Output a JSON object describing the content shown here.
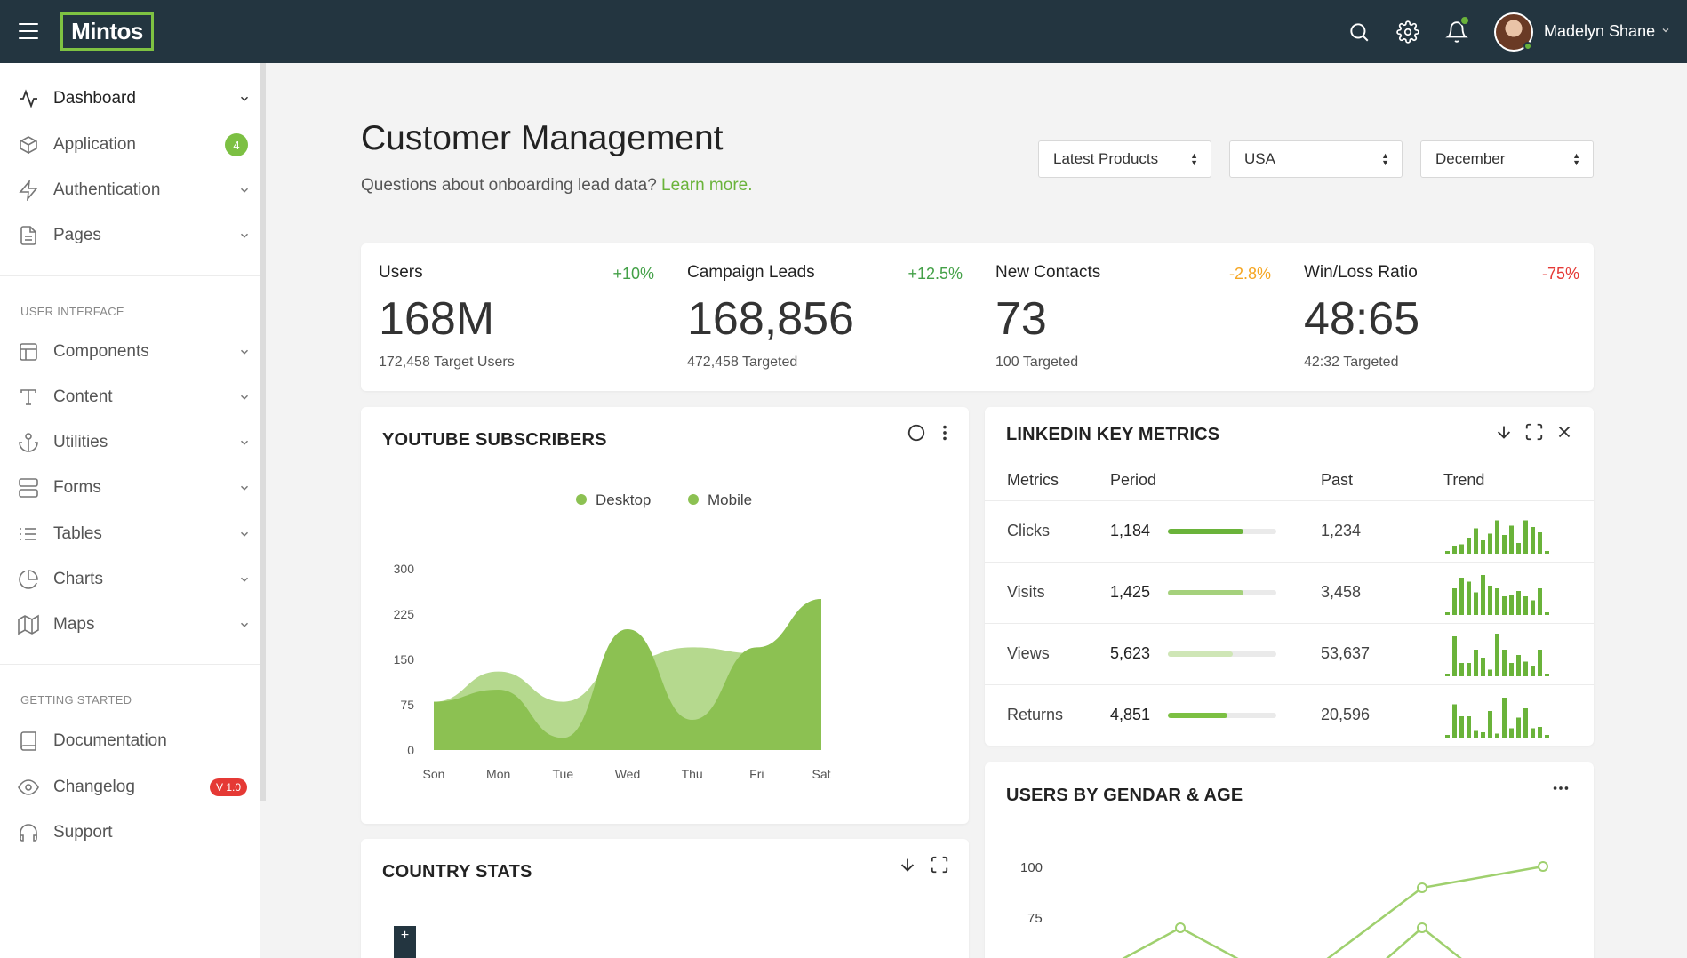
{
  "header": {
    "logo": "Mintos",
    "user_name": "Madelyn Shane"
  },
  "sidebar": {
    "items": [
      {
        "label": "Dashboard",
        "icon": "activity-icon"
      },
      {
        "label": "Application",
        "icon": "box-icon",
        "badge": "4"
      },
      {
        "label": "Authentication",
        "icon": "zap-icon"
      },
      {
        "label": "Pages",
        "icon": "file-icon"
      },
      {
        "label": "Components",
        "icon": "layout-icon"
      },
      {
        "label": "Content",
        "icon": "type-icon"
      },
      {
        "label": "Utilities",
        "icon": "anchor-icon"
      },
      {
        "label": "Forms",
        "icon": "server-icon"
      },
      {
        "label": "Tables",
        "icon": "list-icon"
      },
      {
        "label": "Charts",
        "icon": "pie-chart-icon"
      },
      {
        "label": "Maps",
        "icon": "map-icon"
      },
      {
        "label": "Documentation",
        "icon": "book-icon"
      },
      {
        "label": "Changelog",
        "icon": "eye-icon",
        "badge": "V 1.0"
      },
      {
        "label": "Support",
        "icon": "headphones-icon"
      }
    ],
    "section_ui": "USER INTERFACE",
    "section_start": "GETTING STARTED"
  },
  "page": {
    "title": "Customer Management",
    "subtitle": "Questions about onboarding lead data?",
    "learn_more": "Learn more."
  },
  "filters": [
    {
      "value": "Latest Products"
    },
    {
      "value": "USA"
    },
    {
      "value": "December"
    }
  ],
  "stats": [
    {
      "label": "Users",
      "change": "+10%",
      "value": "168M",
      "target": "172,458 Target Users",
      "color": "#43a047"
    },
    {
      "label": "Campaign Leads",
      "change": "+12.5%",
      "value": "168,856",
      "target": "472,458 Targeted",
      "color": "#43a047"
    },
    {
      "label": "New Contacts",
      "change": "-2.8%",
      "value": "73",
      "target": "100 Targeted",
      "color": "#f5a623"
    },
    {
      "label": "Win/Loss Ratio",
      "change": "-75%",
      "value": "48:65",
      "target": "42:32 Targeted",
      "color": "#e53935"
    }
  ],
  "youtube": {
    "title": "YOUTUBE SUBSCRIBERS",
    "legend": [
      "Desktop",
      "Mobile"
    ],
    "chart_data": {
      "type": "area",
      "categories": [
        "Son",
        "Mon",
        "Tue",
        "Wed",
        "Thu",
        "Fri",
        "Sat"
      ],
      "yticks": [
        0,
        75,
        150,
        225,
        300
      ],
      "ylim": [
        0,
        300
      ],
      "series": [
        {
          "name": "Desktop",
          "values": [
            80,
            100,
            20,
            200,
            50,
            170,
            250
          ],
          "color": "#8cc152"
        },
        {
          "name": "Mobile",
          "values": [
            80,
            130,
            80,
            150,
            170,
            160,
            250
          ],
          "color": "#b5d98e"
        }
      ]
    }
  },
  "linkedin": {
    "title": "LINKEDIN KEY METRICS",
    "headers": [
      "Metrics",
      "Period",
      "Past",
      "Trend"
    ],
    "rows": [
      {
        "metric": "Clicks",
        "period": "1,184",
        "progress": 0.7,
        "past": "1,234",
        "trend": [
          2,
          6,
          7,
          12,
          19,
          10,
          15,
          25,
          14,
          21,
          8,
          25,
          20,
          16,
          2
        ]
      },
      {
        "metric": "Visits",
        "period": "1,425",
        "progress": 0.7,
        "past": "3,458",
        "trend": [
          2,
          20,
          28,
          25,
          17,
          30,
          22,
          20,
          14,
          15,
          18,
          14,
          11,
          20,
          2
        ]
      },
      {
        "metric": "Views",
        "period": "5,623",
        "progress": 0.6,
        "past": "53,637",
        "trend": [
          2,
          30,
          10,
          10,
          20,
          14,
          5,
          32,
          20,
          10,
          16,
          11,
          8,
          20,
          2
        ]
      },
      {
        "metric": "Returns",
        "period": "4,851",
        "progress": 0.55,
        "past": "20,596",
        "trend": [
          2,
          25,
          16,
          16,
          5,
          4,
          20,
          3,
          30,
          7,
          15,
          22,
          7,
          8,
          2
        ]
      }
    ],
    "bar_colors": [
      "#6ab33a",
      "#a5d17c",
      "#cfe6b6",
      "#7cc043"
    ]
  },
  "gender": {
    "title": "USERS BY GENDAR & AGE",
    "yticks": [
      100,
      75
    ]
  },
  "country": {
    "title": "COUNTRY STATS",
    "zoom_label": "+"
  },
  "colors": {
    "topbar": "#233540",
    "accent": "#7ec242"
  }
}
